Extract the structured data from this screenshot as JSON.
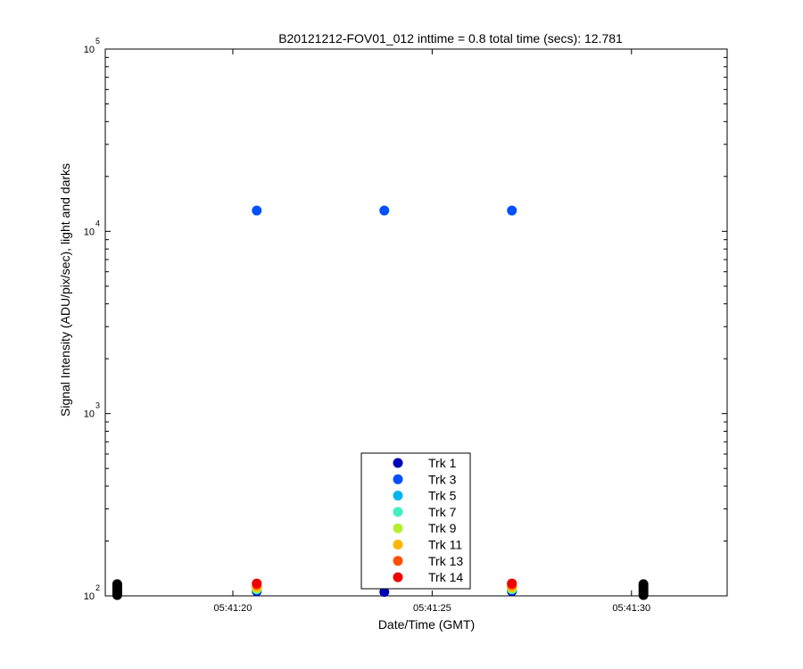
{
  "chart_data": {
    "type": "scatter",
    "title": "B20121212-FOV01_012 inttime = 0.8 total time (secs): 12.781",
    "xlabel": "Date/Time (GMT)",
    "ylabel": "Signal Intensity (ADU/pix/sec), light and darks",
    "y_scale": "log",
    "ylim": [
      100,
      100000
    ],
    "xlim": [
      "05:41:16.8",
      "05:41:32.4"
    ],
    "x_ticks": [
      "05:41:20",
      "05:41:25",
      "05:41:30"
    ],
    "y_ticks": [
      {
        "base": "10",
        "exp": "2"
      },
      {
        "base": "10",
        "exp": "3"
      },
      {
        "base": "10",
        "exp": "4"
      },
      {
        "base": "10",
        "exp": "5"
      }
    ],
    "grid": false,
    "legend_position": "bottom-center",
    "series": [
      {
        "name": "Trk 1",
        "color": "#0000b4",
        "points": [
          [
            "05:41:20.6",
            106
          ],
          [
            "05:41:23.8",
            105
          ],
          [
            "05:41:27.0",
            106
          ]
        ]
      },
      {
        "name": "Trk 3",
        "color": "#0050ff",
        "points": [
          [
            "05:41:20.6",
            13000
          ],
          [
            "05:41:23.8",
            13000
          ],
          [
            "05:41:27.0",
            13000
          ]
        ]
      },
      {
        "name": "Trk 5",
        "color": "#00b4f0",
        "points": [
          [
            "05:41:20.6",
            108
          ],
          [
            "05:41:27.0",
            108
          ]
        ]
      },
      {
        "name": "Trk 7",
        "color": "#40f0c0",
        "points": [
          [
            "05:41:20.6",
            109
          ],
          [
            "05:41:27.0",
            109
          ]
        ]
      },
      {
        "name": "Trk 9",
        "color": "#b4f030",
        "points": [
          [
            "05:41:20.6",
            110
          ],
          [
            "05:41:27.0",
            110
          ]
        ]
      },
      {
        "name": "Trk 11",
        "color": "#ffb400",
        "points": [
          [
            "05:41:20.6",
            112
          ],
          [
            "05:41:27.0",
            112
          ]
        ]
      },
      {
        "name": "Trk 13",
        "color": "#ff5000",
        "points": [
          [
            "05:41:20.6",
            115
          ],
          [
            "05:41:27.0",
            115
          ]
        ]
      },
      {
        "name": "Trk 14",
        "color": "#f00000",
        "points": [
          [
            "05:41:20.6",
            117
          ],
          [
            "05:41:27.0",
            117
          ]
        ]
      }
    ],
    "dark_frames": {
      "color": "#000000",
      "times": [
        "05:41:17.1",
        "05:41:30.3"
      ],
      "values": [
        101,
        104,
        107,
        110,
        113,
        116
      ]
    }
  }
}
